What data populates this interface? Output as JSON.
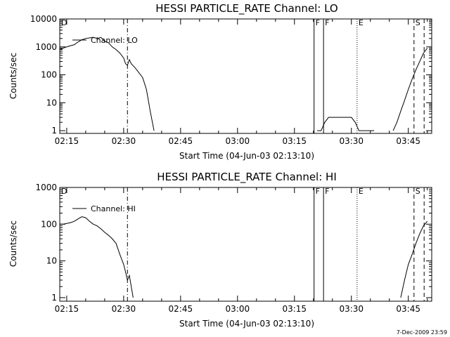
{
  "chart_data": [
    {
      "type": "line",
      "title": "HESSI PARTICLE_RATE Channel: LO",
      "xlabel": "Start Time (04-Jun-03 02:13:10)",
      "ylabel": "Counts/sec",
      "yscale": "log",
      "xlim": [
        "02:13:10",
        "03:51:10"
      ],
      "ylim": [
        0.8,
        10000
      ],
      "xticks": [
        "02:15",
        "02:30",
        "02:45",
        "03:00",
        "03:15",
        "03:30",
        "03:45"
      ],
      "yticks": [
        "1",
        "10",
        "100",
        "1000",
        "10000"
      ],
      "legend": "top-left",
      "series": [
        {
          "name": "Channel: LO",
          "x": [
            "02:13:10",
            "02:14:00",
            "02:15:00",
            "02:16:00",
            "02:17:00",
            "02:18:00",
            "02:19:00",
            "02:20:00",
            "02:21:00",
            "02:22:00",
            "02:23:00",
            "02:24:00",
            "02:25:00",
            "02:26:00",
            "02:27:00",
            "02:28:00",
            "02:29:00",
            "02:30:00",
            "02:30:30",
            "02:31:00",
            "02:31:30",
            "02:32:00",
            "02:33:00",
            "02:34:00",
            "02:35:00",
            "02:36:00",
            "02:37:00",
            "02:38:00",
            "03:21:00",
            "03:22:00",
            "03:23:00",
            "03:24:00",
            "03:25:00",
            "03:26:00",
            "03:27:00",
            "03:28:00",
            "03:29:00",
            "03:30:00",
            "03:31:00",
            "03:32:00",
            "03:33:00",
            "03:34:00",
            "03:35:00",
            "03:36:00",
            "03:41:00",
            "03:42:00",
            "03:43:00",
            "03:44:00",
            "03:45:00",
            "03:46:00",
            "03:47:00",
            "03:48:00",
            "03:49:00",
            "03:50:00"
          ],
          "y": [
            800,
            900,
            1000,
            1100,
            1200,
            1500,
            1800,
            2000,
            2100,
            2200,
            2000,
            2200,
            1600,
            1400,
            1000,
            800,
            600,
            400,
            250,
            220,
            350,
            250,
            180,
            120,
            80,
            30,
            5,
            1,
            1,
            1,
            2,
            3,
            3,
            3,
            3,
            3,
            3,
            3,
            2,
            1,
            1,
            1,
            1,
            1,
            1,
            2,
            5,
            12,
            30,
            70,
            150,
            300,
            600,
            900
          ]
        }
      ]
    },
    {
      "type": "line",
      "title": "HESSI PARTICLE_RATE Channel: HI",
      "xlabel": "Start Time (04-Jun-03 02:13:10)",
      "ylabel": "Counts/sec",
      "yscale": "log",
      "xlim": [
        "02:13:10",
        "03:51:10"
      ],
      "ylim": [
        0.8,
        1000
      ],
      "xticks": [
        "02:15",
        "02:30",
        "02:45",
        "03:00",
        "03:15",
        "03:30",
        "03:45"
      ],
      "yticks": [
        "1",
        "10",
        "100",
        "1000"
      ],
      "legend": "top-left",
      "series": [
        {
          "name": "Channel: HI",
          "x": [
            "02:13:10",
            "02:14:00",
            "02:15:00",
            "02:16:00",
            "02:17:00",
            "02:18:00",
            "02:19:00",
            "02:20:00",
            "02:21:00",
            "02:22:00",
            "02:23:00",
            "02:24:00",
            "02:25:00",
            "02:26:00",
            "02:27:00",
            "02:28:00",
            "02:29:00",
            "02:30:00",
            "02:30:30",
            "02:31:00",
            "02:31:30",
            "02:32:00",
            "02:32:30",
            "03:43:00",
            "03:44:00",
            "03:45:00",
            "03:46:00",
            "03:47:00",
            "03:48:00",
            "03:49:00",
            "03:50:00"
          ],
          "y": [
            100,
            100,
            105,
            110,
            120,
            140,
            160,
            150,
            120,
            100,
            90,
            75,
            60,
            50,
            40,
            30,
            15,
            8,
            5,
            3,
            4,
            2,
            1,
            1,
            3,
            8,
            15,
            30,
            55,
            90,
            120
          ]
        }
      ]
    }
  ],
  "markers": [
    {
      "label": "D",
      "time": "02:13:10",
      "style": "solid"
    },
    {
      "label": "",
      "time": "02:31:00",
      "style": "dashdot"
    },
    {
      "label": "F",
      "time": "03:20:10",
      "style": "solid"
    },
    {
      "label": "F",
      "time": "03:22:40",
      "style": "solid"
    },
    {
      "label": "E",
      "time": "03:31:30",
      "style": "dotted"
    },
    {
      "label": "S",
      "time": "03:46:30",
      "style": "dashed"
    },
    {
      "label": "",
      "time": "03:49:10",
      "style": "dashed"
    }
  ],
  "footer": {
    "stamp": "7-Dec-2009 23:59"
  }
}
